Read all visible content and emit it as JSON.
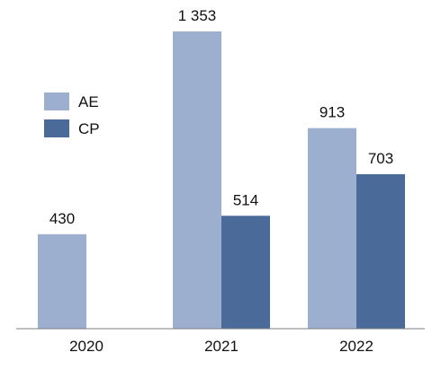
{
  "chart_data": {
    "type": "bar",
    "categories": [
      "2020",
      "2021",
      "2022"
    ],
    "series": [
      {
        "name": "AE",
        "color": "#9dafcf",
        "values": [
          430,
          1353,
          913
        ],
        "labels": [
          "430",
          "1 353",
          "913"
        ]
      },
      {
        "name": "CP",
        "color": "#4a6a9a",
        "values": [
          null,
          514,
          703
        ],
        "labels": [
          "",
          "514",
          "703"
        ]
      }
    ],
    "ylim": [
      0,
      1353
    ],
    "grid": false,
    "legend": "left"
  }
}
